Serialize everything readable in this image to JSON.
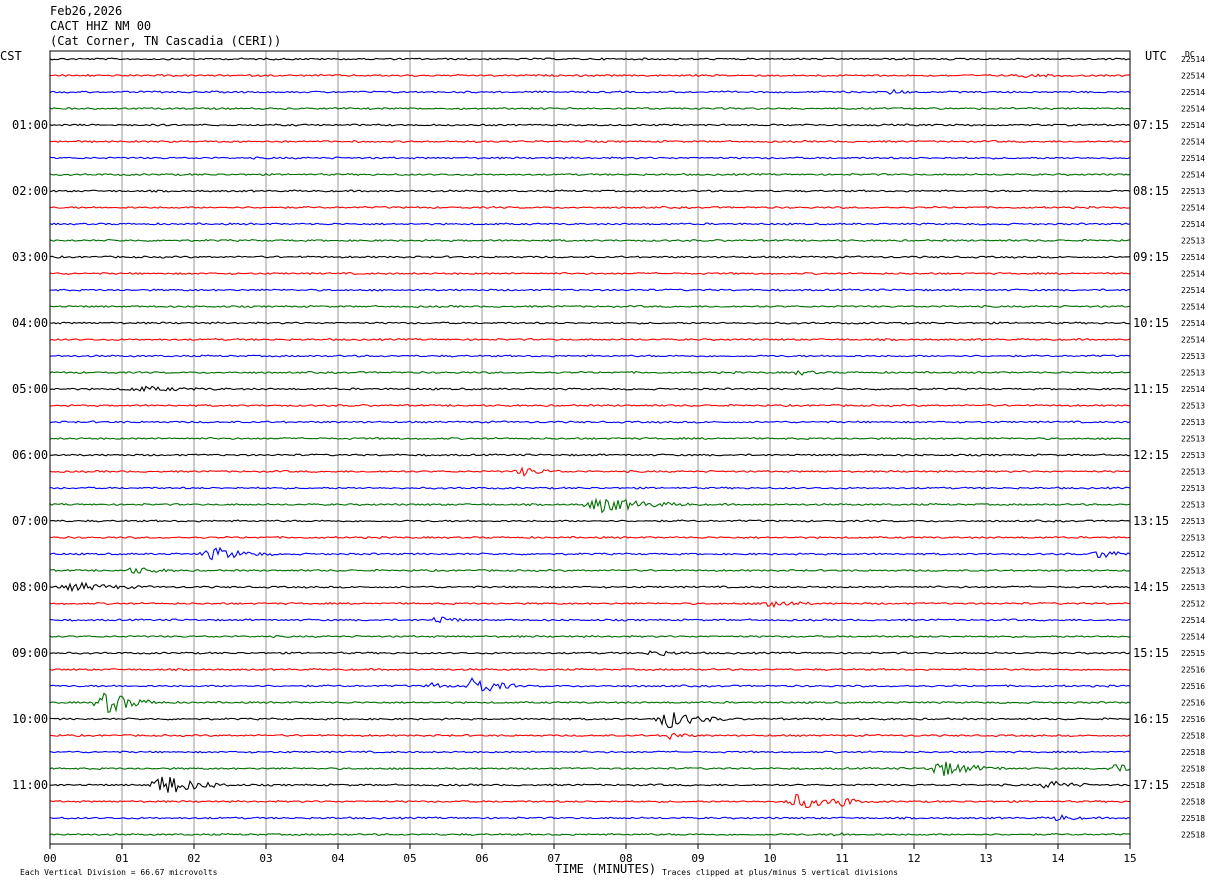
{
  "header": {
    "date": "Feb26,2026",
    "station": "CACT HHZ NM 00",
    "location": "(Cat Corner, TN Cascadia (CERI))"
  },
  "chart_data": {
    "type": "line",
    "title": "",
    "left_zone": "CST",
    "right_zone": "UTC",
    "dc_label": "DC",
    "xlabel": "TIME (MINUTES)",
    "x_ticks": [
      "00",
      "01",
      "02",
      "03",
      "04",
      "05",
      "06",
      "07",
      "08",
      "09",
      "10",
      "11",
      "12",
      "13",
      "14",
      "15"
    ],
    "xlim": [
      0,
      15
    ],
    "footer_left": "Each Vertical Division =   66.67 microvolts",
    "footer_right": "Traces clipped at plus/minus 5 vertical divisions",
    "trace_colors": [
      "#000000",
      "#ff0000",
      "#0000ff",
      "#007000"
    ],
    "rows_per_hour": 4,
    "left_hour_labels": [
      "01:00",
      "02:00",
      "03:00",
      "04:00",
      "05:00",
      "06:00",
      "07:00",
      "08:00",
      "09:00",
      "10:00",
      "11:00"
    ],
    "right_hour_labels": [
      "07:15",
      "08:15",
      "09:15",
      "10:15",
      "11:15",
      "12:15",
      "13:15",
      "14:15",
      "15:15",
      "16:15",
      "17:15"
    ],
    "dc_values": [
      "22514",
      "22514",
      "22514",
      "22514",
      "22514",
      "22514",
      "22514",
      "22514",
      "22513",
      "22514",
      "22514",
      "22513",
      "22514",
      "22514",
      "22514",
      "22514",
      "22514",
      "22514",
      "22513",
      "22513",
      "22514",
      "22513",
      "22513",
      "22513",
      "22513",
      "22513",
      "22513",
      "22513",
      "22513",
      "22513",
      "22512",
      "22513",
      "22513",
      "22512",
      "22514",
      "22514",
      "22515",
      "22516",
      "22516",
      "22516",
      "22516",
      "22518",
      "22518",
      "22518",
      "22518",
      "22518",
      "22518",
      "22518"
    ],
    "events": [
      {
        "row": 1,
        "t": 13.6,
        "amp": 0.8,
        "dur": 0.5
      },
      {
        "row": 2,
        "t": 11.7,
        "amp": 1.2,
        "dur": 0.3
      },
      {
        "row": 19,
        "t": 10.4,
        "amp": 1.0,
        "dur": 0.4
      },
      {
        "row": 20,
        "t": 1.3,
        "amp": 1.0,
        "dur": 1.2
      },
      {
        "row": 25,
        "t": 6.6,
        "amp": 1.8,
        "dur": 0.6
      },
      {
        "row": 27,
        "t": 7.7,
        "amp": 3.5,
        "dur": 1.2
      },
      {
        "row": 30,
        "t": 2.3,
        "amp": 3.0,
        "dur": 0.8
      },
      {
        "row": 30,
        "t": 14.6,
        "amp": 2.2,
        "dur": 0.5
      },
      {
        "row": 31,
        "t": 1.2,
        "amp": 1.5,
        "dur": 0.6
      },
      {
        "row": 32,
        "t": 0.4,
        "amp": 1.8,
        "dur": 1.0
      },
      {
        "row": 33,
        "t": 10.0,
        "amp": 2.5,
        "dur": 0.6
      },
      {
        "row": 34,
        "t": 5.4,
        "amp": 2.0,
        "dur": 0.4
      },
      {
        "row": 36,
        "t": 8.4,
        "amp": 1.5,
        "dur": 0.5
      },
      {
        "row": 38,
        "t": 5.9,
        "amp": 5.0,
        "dur": 0.6
      },
      {
        "row": 38,
        "t": 5.3,
        "amp": 1.8,
        "dur": 0.3
      },
      {
        "row": 39,
        "t": 0.8,
        "amp": 5.0,
        "dur": 0.8
      },
      {
        "row": 40,
        "t": 8.6,
        "amp": 4.0,
        "dur": 0.8
      },
      {
        "row": 41,
        "t": 8.6,
        "amp": 2.0,
        "dur": 0.4
      },
      {
        "row": 43,
        "t": 12.4,
        "amp": 3.5,
        "dur": 0.9
      },
      {
        "row": 43,
        "t": 14.8,
        "amp": 2.0,
        "dur": 0.5
      },
      {
        "row": 44,
        "t": 1.6,
        "amp": 5.0,
        "dur": 0.9
      },
      {
        "row": 44,
        "t": 13.9,
        "amp": 2.0,
        "dur": 0.6
      },
      {
        "row": 45,
        "t": 10.4,
        "amp": 3.5,
        "dur": 0.8
      },
      {
        "row": 45,
        "t": 11.0,
        "amp": 2.5,
        "dur": 0.3
      },
      {
        "row": 46,
        "t": 14.0,
        "amp": 1.5,
        "dur": 0.4
      },
      {
        "row": 47,
        "t": 10.9,
        "amp": 1.0,
        "dur": 0.3
      }
    ]
  }
}
